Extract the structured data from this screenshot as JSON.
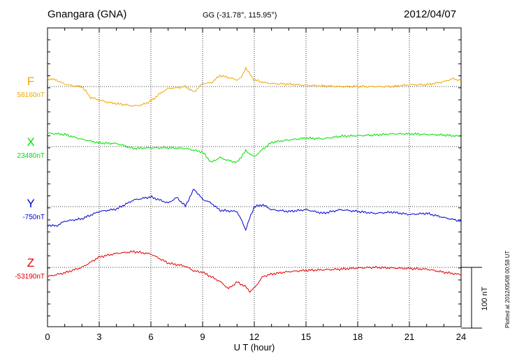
{
  "header": {
    "station": "Gnangara (GNA)",
    "coords": "GG (-31.78°, 115.95°)",
    "date": "2012/04/07"
  },
  "footer": {
    "plotted": "Plotted at 2012/05/08 00:58 UT"
  },
  "chart_data": {
    "type": "line",
    "xlabel": "U T (hour)",
    "xlim": [
      0,
      24
    ],
    "xticks": [
      "0",
      "3",
      "6",
      "9",
      "12",
      "15",
      "18",
      "21",
      "24"
    ],
    "scale_bar_label": "100 nT",
    "grid": true,
    "series": [
      {
        "name": "F",
        "baseline_label": "58160nT",
        "color": "#f0a800",
        "x": [
          0,
          0.5,
          1,
          1.5,
          2,
          2.5,
          3,
          3.5,
          4,
          4.5,
          5,
          5.5,
          6,
          6.5,
          7,
          7.5,
          8,
          8.5,
          9,
          9.5,
          10,
          10.5,
          11,
          11.25,
          11.5,
          11.75,
          12,
          12.5,
          13,
          14,
          15,
          16,
          17,
          18,
          19,
          20,
          21,
          22,
          23,
          23.5,
          24
        ],
        "values": [
          13,
          11,
          4,
          1,
          0,
          -18,
          -22,
          -26,
          -28,
          -30,
          -32,
          -30,
          -24,
          -12,
          -3,
          -2,
          0,
          -9,
          5,
          6,
          18,
          15,
          11,
          15,
          31,
          20,
          11,
          7,
          5,
          4,
          2,
          1,
          0,
          0,
          0,
          0,
          3,
          3,
          8,
          13,
          10
        ]
      },
      {
        "name": "X",
        "baseline_label": "23480nT",
        "color": "#00e000",
        "x": [
          0,
          1,
          2,
          3,
          4,
          5,
          6,
          7,
          8,
          8.5,
          9,
          9.5,
          10,
          10.5,
          11,
          11.5,
          12,
          12.5,
          13,
          14,
          15,
          16,
          17,
          18,
          19,
          20,
          21,
          22,
          23,
          24
        ],
        "values": [
          22,
          20,
          12,
          6,
          5,
          -3,
          -2,
          -2,
          -3,
          -6,
          -9,
          -26,
          -18,
          -23,
          -26,
          -7,
          -17,
          -4,
          7,
          11,
          14,
          13,
          17,
          18,
          19,
          21,
          21,
          20,
          19,
          17
        ]
      },
      {
        "name": "Y",
        "baseline_label": "-750nT",
        "color": "#0000d0",
        "x": [
          0,
          0.5,
          1,
          2,
          3,
          4,
          5,
          6,
          7,
          7.5,
          8,
          8.5,
          9,
          9.5,
          10,
          11,
          11.25,
          11.5,
          11.75,
          12,
          12.5,
          13,
          14,
          15,
          16,
          17,
          18,
          19,
          20,
          21,
          22,
          23,
          24
        ],
        "values": [
          -30,
          -32,
          -24,
          -20,
          -8,
          -4,
          11,
          16,
          6,
          15,
          1,
          29,
          12,
          6,
          -6,
          -8,
          -22,
          -38,
          -18,
          0,
          3,
          -5,
          -8,
          -5,
          -11,
          -5,
          -8,
          -11,
          -9,
          -13,
          -11,
          -18,
          -24
        ]
      },
      {
        "name": "Z",
        "baseline_label": "-53190nT",
        "color": "#e00000",
        "x": [
          0,
          1,
          2,
          3,
          4,
          5,
          6,
          7,
          8,
          8.5,
          9,
          10,
          10.5,
          11,
          11.5,
          11.75,
          12,
          12.5,
          13,
          14,
          15,
          16,
          17,
          18,
          19,
          20,
          21,
          22,
          23,
          24
        ],
        "values": [
          -15,
          -9,
          0,
          17,
          23,
          26,
          22,
          7,
          2,
          -6,
          -8,
          -23,
          -35,
          -24,
          -32,
          -40,
          -34,
          -15,
          -11,
          -7,
          -5,
          -4,
          -3,
          -1,
          0,
          -1,
          -2,
          -3,
          -8,
          -12
        ]
      }
    ]
  }
}
